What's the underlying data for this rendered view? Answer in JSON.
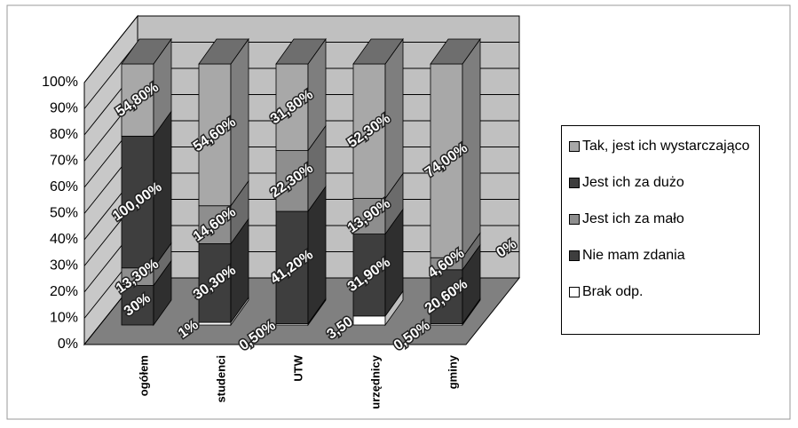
{
  "chart_data": {
    "type": "bar3d-percent",
    "categories": [
      "ogółem",
      "studenci",
      "UTW",
      "urzędnicy",
      "gminy"
    ],
    "series": [
      {
        "name": "Tak, jest ich wystarczająco",
        "color": "#a8a8a8",
        "values": [
          54.8,
          54.6,
          31.8,
          52.3,
          74.0
        ],
        "value_labels": [
          "54,80%",
          "54,60%",
          "31,80%",
          "52,30%",
          "74,00%"
        ]
      },
      {
        "name": "Jest ich za dużo",
        "color": "#3e3e3e",
        "values": [
          100,
          null,
          null,
          null,
          0
        ],
        "value_labels": [
          "100,00%",
          null,
          null,
          null,
          "0%"
        ]
      },
      {
        "name": "Jest ich za mało",
        "color": "#8e8e8e",
        "values": [
          13.3,
          14.6,
          22.3,
          13.9,
          4.6
        ],
        "value_labels": [
          "13,30%",
          "14,60%",
          "22,30%",
          "13,90%",
          "4,60%"
        ]
      },
      {
        "name": "Nie mam zdania",
        "color": "#3e3e3e",
        "values": [
          30,
          30.3,
          41.2,
          31.9,
          20.6
        ],
        "value_labels": [
          "30%",
          "30,30%",
          "41,20%",
          "31,90%",
          "20,60%"
        ]
      },
      {
        "name": "Brak odp.",
        "color": "#ffffff",
        "values": [
          null,
          1,
          0.5,
          3.5,
          0.5
        ],
        "value_labels": [
          null,
          "1%",
          "0,50%",
          "3,50",
          "0,50%"
        ]
      }
    ],
    "ylim": [
      0,
      100
    ],
    "yticks": [
      {
        "value": 0,
        "label": "0%"
      },
      {
        "value": 10,
        "label": "10%"
      },
      {
        "value": 20,
        "label": "20%"
      },
      {
        "value": 30,
        "label": "30%"
      },
      {
        "value": 40,
        "label": "40%"
      },
      {
        "value": 50,
        "label": "50%"
      },
      {
        "value": 60,
        "label": "60%"
      },
      {
        "value": 70,
        "label": "70%"
      },
      {
        "value": 80,
        "label": "80%"
      },
      {
        "value": 90,
        "label": "90%"
      },
      {
        "value": 100,
        "label": "100%"
      }
    ],
    "grid": true
  }
}
